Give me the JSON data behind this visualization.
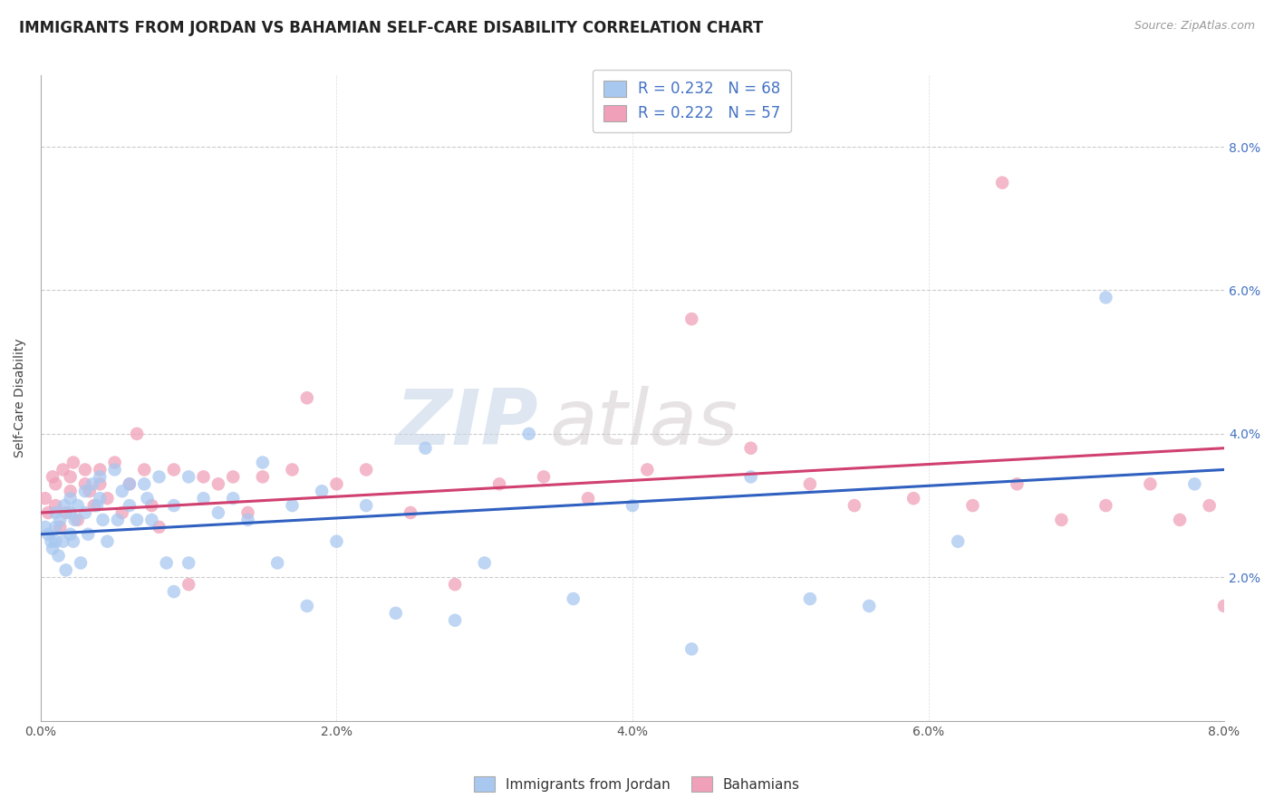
{
  "title": "IMMIGRANTS FROM JORDAN VS BAHAMIAN SELF-CARE DISABILITY CORRELATION CHART",
  "source": "Source: ZipAtlas.com",
  "ylabel": "Self-Care Disability",
  "color_blue": "#A8C8F0",
  "color_pink": "#F0A0B8",
  "line_color_blue": "#3060C0",
  "line_color_pink": "#D04070",
  "xlim": [
    0.0,
    0.08
  ],
  "ylim": [
    0.0,
    0.09
  ],
  "x_tick_vals": [
    0.0,
    0.02,
    0.04,
    0.06,
    0.08
  ],
  "x_tick_labels": [
    "0.0%",
    "2.0%",
    "4.0%",
    "6.0%",
    "8.0%"
  ],
  "y_tick_vals": [
    0.02,
    0.04,
    0.06,
    0.08
  ],
  "y_tick_labels": [
    "2.0%",
    "4.0%",
    "6.0%",
    "8.0%"
  ],
  "watermark_zip": "ZIP",
  "watermark_atlas": "atlas",
  "legend_label_blue": "Immigrants from Jordan",
  "legend_label_pink": "Bahamians",
  "title_fontsize": 12,
  "axis_label_fontsize": 10,
  "tick_fontsize": 10,
  "source_fontsize": 9,
  "jordan_x": [
    0.0003,
    0.0005,
    0.0007,
    0.0008,
    0.001,
    0.001,
    0.001,
    0.0012,
    0.0013,
    0.0015,
    0.0016,
    0.0017,
    0.002,
    0.002,
    0.002,
    0.0022,
    0.0023,
    0.0025,
    0.0027,
    0.003,
    0.003,
    0.0032,
    0.0035,
    0.0038,
    0.004,
    0.004,
    0.0042,
    0.0045,
    0.005,
    0.0052,
    0.0055,
    0.006,
    0.006,
    0.0065,
    0.007,
    0.0072,
    0.0075,
    0.008,
    0.0085,
    0.009,
    0.009,
    0.01,
    0.01,
    0.011,
    0.012,
    0.013,
    0.014,
    0.015,
    0.016,
    0.017,
    0.018,
    0.019,
    0.02,
    0.022,
    0.024,
    0.026,
    0.028,
    0.03,
    0.033,
    0.036,
    0.04,
    0.044,
    0.048,
    0.052,
    0.056,
    0.062,
    0.072,
    0.078
  ],
  "jordan_y": [
    0.027,
    0.026,
    0.025,
    0.024,
    0.029,
    0.027,
    0.025,
    0.023,
    0.028,
    0.025,
    0.03,
    0.021,
    0.031,
    0.029,
    0.026,
    0.025,
    0.028,
    0.03,
    0.022,
    0.032,
    0.029,
    0.026,
    0.033,
    0.03,
    0.034,
    0.031,
    0.028,
    0.025,
    0.035,
    0.028,
    0.032,
    0.033,
    0.03,
    0.028,
    0.033,
    0.031,
    0.028,
    0.034,
    0.022,
    0.03,
    0.018,
    0.034,
    0.022,
    0.031,
    0.029,
    0.031,
    0.028,
    0.036,
    0.022,
    0.03,
    0.016,
    0.032,
    0.025,
    0.03,
    0.015,
    0.038,
    0.014,
    0.022,
    0.04,
    0.017,
    0.03,
    0.01,
    0.034,
    0.017,
    0.016,
    0.025,
    0.059,
    0.033
  ],
  "bahamas_x": [
    0.0003,
    0.0005,
    0.0008,
    0.001,
    0.001,
    0.0013,
    0.0015,
    0.0017,
    0.002,
    0.002,
    0.0022,
    0.0025,
    0.003,
    0.003,
    0.0033,
    0.0036,
    0.004,
    0.004,
    0.0045,
    0.005,
    0.0055,
    0.006,
    0.0065,
    0.007,
    0.0075,
    0.008,
    0.009,
    0.01,
    0.011,
    0.012,
    0.013,
    0.014,
    0.015,
    0.017,
    0.018,
    0.02,
    0.022,
    0.025,
    0.028,
    0.031,
    0.034,
    0.037,
    0.041,
    0.044,
    0.048,
    0.052,
    0.055,
    0.059,
    0.063,
    0.066,
    0.069,
    0.072,
    0.075,
    0.077,
    0.079,
    0.08,
    0.065
  ],
  "bahamas_y": [
    0.031,
    0.029,
    0.034,
    0.033,
    0.03,
    0.027,
    0.035,
    0.029,
    0.034,
    0.032,
    0.036,
    0.028,
    0.035,
    0.033,
    0.032,
    0.03,
    0.035,
    0.033,
    0.031,
    0.036,
    0.029,
    0.033,
    0.04,
    0.035,
    0.03,
    0.027,
    0.035,
    0.019,
    0.034,
    0.033,
    0.034,
    0.029,
    0.034,
    0.035,
    0.045,
    0.033,
    0.035,
    0.029,
    0.019,
    0.033,
    0.034,
    0.031,
    0.035,
    0.056,
    0.038,
    0.033,
    0.03,
    0.031,
    0.03,
    0.033,
    0.028,
    0.03,
    0.033,
    0.028,
    0.03,
    0.016,
    0.075
  ],
  "jordan_line_x0": 0.0,
  "jordan_line_y0": 0.026,
  "jordan_line_x1": 0.08,
  "jordan_line_y1": 0.035,
  "bahamas_line_x0": 0.0,
  "bahamas_line_y0": 0.029,
  "bahamas_line_x1": 0.08,
  "bahamas_line_y1": 0.038
}
